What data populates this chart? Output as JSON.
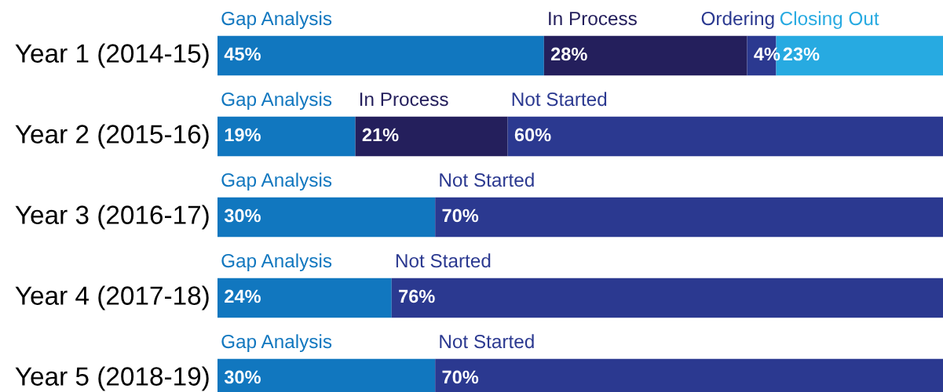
{
  "chart_data": {
    "type": "bar",
    "orientation": "horizontal",
    "stacked": true,
    "legend": false,
    "categories": [
      "Year 1 (2014-15)",
      "Year 2 (2015-16)",
      "Year 3 (2016-17)",
      "Year 4 (2017-18)",
      "Year 5 (2018-19)"
    ],
    "series": [
      {
        "name": "Gap Analysis",
        "color": "#1177bf",
        "values": [
          45,
          19,
          30,
          24,
          30
        ],
        "value_labels": [
          "45%",
          "19%",
          "30%",
          "24%",
          "30%"
        ]
      },
      {
        "name": "In Process",
        "color": "#241f5c",
        "values": [
          28,
          21,
          null,
          null,
          null
        ],
        "value_labels": [
          "28%",
          "21%",
          null,
          null,
          null
        ]
      },
      {
        "name": "Ordering",
        "color": "#2b3990",
        "values": [
          4,
          null,
          null,
          null,
          null
        ],
        "value_labels": [
          "4%",
          null,
          null,
          null,
          null
        ]
      },
      {
        "name": "Closing Out",
        "color": "#27aae1",
        "values": [
          23,
          null,
          null,
          null,
          null
        ],
        "value_labels": [
          "23%",
          null,
          null,
          null,
          null
        ]
      },
      {
        "name": "Not Started",
        "color": "#2b3990",
        "values": [
          null,
          60,
          70,
          76,
          70
        ],
        "value_labels": [
          null,
          "60%",
          "70%",
          "76%",
          "70%"
        ]
      }
    ]
  }
}
